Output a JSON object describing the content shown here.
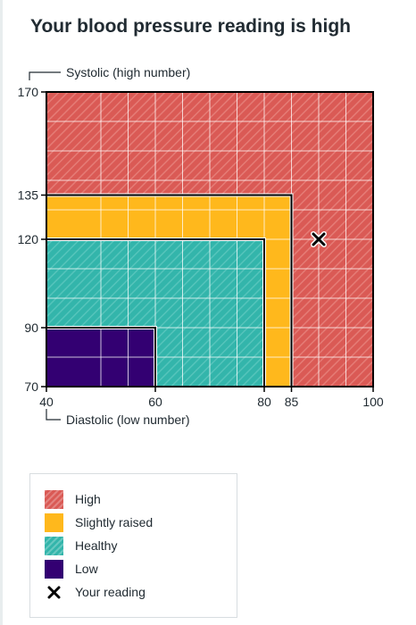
{
  "title": "Your blood pressure reading is high",
  "chart_data": {
    "type": "area",
    "title": "Your blood pressure reading is high",
    "ylabel": "Systolic (high number)",
    "xlabel": "Diastolic (low number)",
    "xlim": [
      40,
      100
    ],
    "ylim": [
      70,
      170
    ],
    "x_ticks": [
      40,
      60,
      80,
      85,
      100
    ],
    "y_ticks": [
      70,
      90,
      120,
      135,
      170
    ],
    "grid": true,
    "zones": [
      {
        "name": "High",
        "x": [
          40,
          100
        ],
        "y": [
          70,
          170
        ],
        "color": "#da5a55"
      },
      {
        "name": "Slightly raised",
        "x": [
          40,
          85
        ],
        "y": [
          70,
          135
        ],
        "color": "#ffb81c"
      },
      {
        "name": "Healthy",
        "x": [
          40,
          80
        ],
        "y": [
          70,
          120
        ],
        "color": "#33b5ab"
      },
      {
        "name": "Low",
        "x": [
          40,
          60
        ],
        "y": [
          70,
          90
        ],
        "color": "#330072"
      }
    ],
    "reading": {
      "label": "Your reading",
      "x": 90,
      "y": 120
    }
  },
  "legend": {
    "items": [
      {
        "label": "High",
        "color": "#da5a55",
        "pattern": true
      },
      {
        "label": "Slightly raised",
        "color": "#ffb81c",
        "pattern": false
      },
      {
        "label": "Healthy",
        "color": "#33b5ab",
        "pattern": true
      },
      {
        "label": "Low",
        "color": "#330072",
        "pattern": false
      },
      {
        "label": "Your reading",
        "marker": "cross-icon"
      }
    ]
  }
}
